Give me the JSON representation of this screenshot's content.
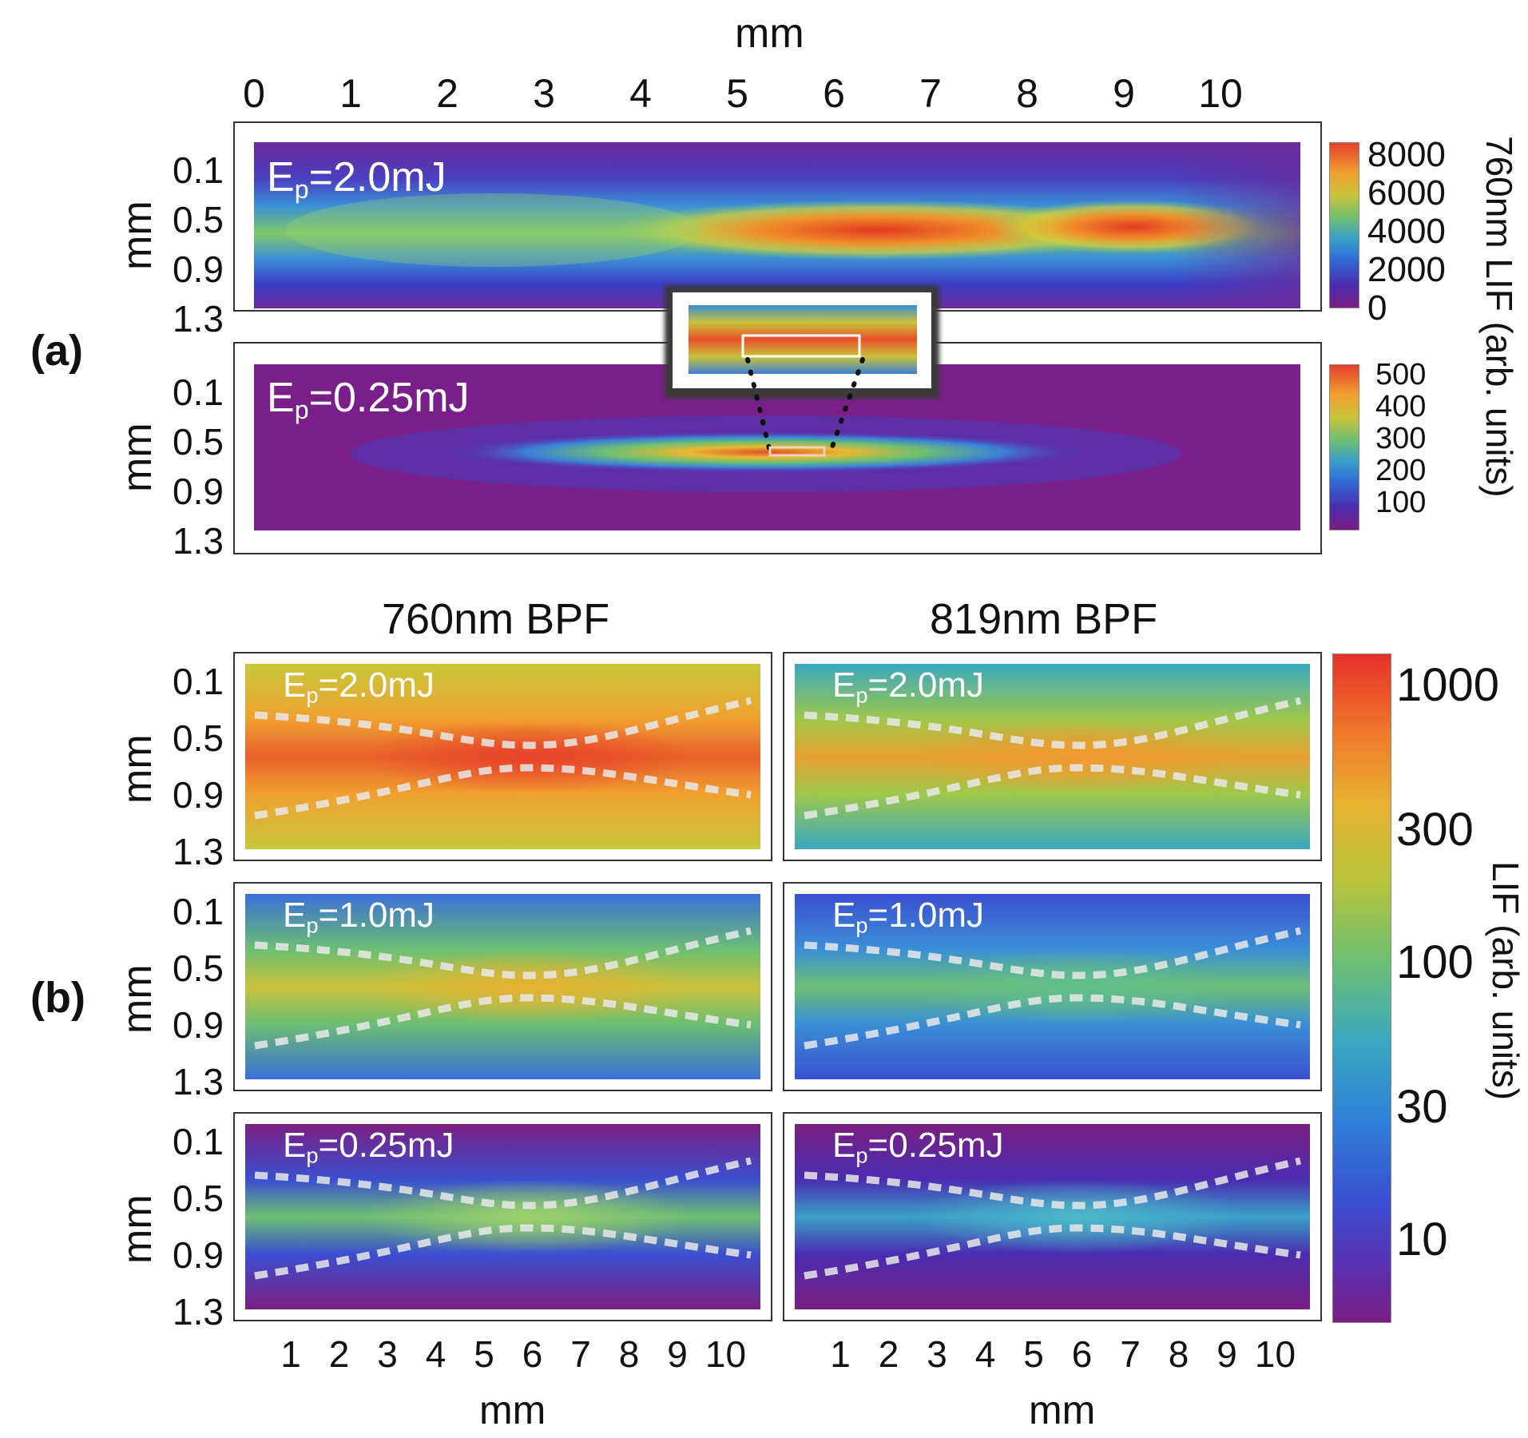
{
  "chart_data": [
    {
      "type": "heatmap",
      "panel": "(a)",
      "x_axis_title": "mm",
      "x_ticks": [
        "0",
        "1",
        "2",
        "3",
        "4",
        "5",
        "6",
        "7",
        "8",
        "9",
        "10"
      ],
      "y_axis_title": "mm",
      "y_ticks": [
        "0.1",
        "0.5",
        "0.9",
        "1.3"
      ],
      "colorbar_title": "760nm  LIF (arb. units)",
      "plots": [
        {
          "label_main": "E",
          "label_sub": "p",
          "label_rest": "=2.0mJ",
          "colorbar_ticks": [
            "8000",
            "6000",
            "4000",
            "2000",
            "0"
          ],
          "colorbar_range": [
            0,
            8000
          ],
          "peak_positions_mm": [
            6.0,
            9.0
          ]
        },
        {
          "label_main": "E",
          "label_sub": "p",
          "label_rest": "=0.25mJ",
          "colorbar_ticks": [
            "500",
            "400",
            "300",
            "200",
            "100"
          ],
          "colorbar_range": [
            0,
            520
          ],
          "peak_positions_mm": [
            5.9
          ]
        }
      ],
      "inset": "zoomed view of the 0.25mJ focal region"
    },
    {
      "type": "heatmap",
      "panel": "(b)",
      "columns": [
        "760nm BPF",
        "819nm BPF"
      ],
      "x_axis_title": "mm",
      "x_ticks": [
        "1",
        "2",
        "3",
        "4",
        "5",
        "6",
        "7",
        "8",
        "9",
        "10"
      ],
      "y_axis_title": "mm",
      "y_ticks": [
        "0.1",
        "0.5",
        "0.9",
        "1.3"
      ],
      "colorbar_title": "LIF (arb. units)",
      "colorbar_scale": "log",
      "colorbar_ticks": [
        "1000",
        "300",
        "100",
        "30",
        "10"
      ],
      "rows": [
        {
          "label_main": "E",
          "label_sub": "p",
          "label_rest": "=2.0mJ"
        },
        {
          "label_main": "E",
          "label_sub": "p",
          "label_rest": "=1.0mJ"
        },
        {
          "label_main": "E",
          "label_sub": "p",
          "label_rest": "=0.25mJ"
        }
      ],
      "overlay": "white dashed beam-waist contour"
    }
  ],
  "colors": {
    "viridis_like_scale": [
      "#7a1f82",
      "#4a2db0",
      "#2f6fd8",
      "#3aa0c8",
      "#6cbf73",
      "#c9c23a",
      "#f0a030",
      "#e6402a"
    ]
  }
}
